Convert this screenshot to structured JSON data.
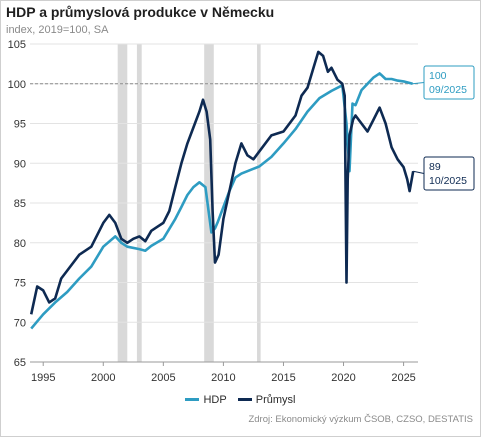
{
  "title": "HDP a průmyslová produkce v Německu",
  "subtitle": "index, 2019=100, SA",
  "source": "Zdroj: Ekonomický výzkum ČSOB, CZSO, DESTATIS",
  "colors": {
    "hdp": "#2e9cc2",
    "prumysl": "#0e2a52",
    "recession": "#d9d9d9",
    "grid": "#e3e3e3",
    "ref": "#8c8c8c"
  },
  "legend": [
    {
      "name": "HDP",
      "color": "#2e9cc2"
    },
    {
      "name": "Průmysl",
      "color": "#0e2a52"
    }
  ],
  "callouts": {
    "hdp": {
      "value": "100",
      "date": "09/2025"
    },
    "prumysl": {
      "value": "89",
      "date": "10/2025"
    }
  },
  "chart_data": {
    "type": "line",
    "x_range": [
      1993.9,
      2026.2
    ],
    "ylim": [
      65,
      105
    ],
    "xticks": [
      "1995",
      "2000",
      "2005",
      "2010",
      "2015",
      "2020",
      "2025"
    ],
    "xtick_values": [
      1995,
      2000,
      2005,
      2010,
      2015,
      2020,
      2025
    ],
    "yticks": [
      "65",
      "70",
      "75",
      "80",
      "85",
      "90",
      "95",
      "100",
      "105"
    ],
    "ytick_values": [
      65,
      70,
      75,
      80,
      85,
      90,
      95,
      100,
      105
    ],
    "reference_line": 100,
    "grid": true,
    "legend_position": "bottom",
    "recession_bands": [
      [
        2001.2,
        2002.0
      ],
      [
        2002.8,
        2003.2
      ],
      [
        2008.4,
        2009.2
      ],
      [
        2012.8,
        2013.1
      ]
    ],
    "series": [
      {
        "name": "HDP",
        "x": [
          1994.0,
          1995.0,
          1996.0,
          1997.0,
          1998.0,
          1999.0,
          2000.0,
          2001.0,
          2001.5,
          2002.0,
          2003.0,
          2003.5,
          2004.0,
          2005.0,
          2006.0,
          2006.5,
          2007.0,
          2007.5,
          2008.0,
          2008.5,
          2009.0,
          2009.3,
          2009.5,
          2010.0,
          2010.5,
          2011.0,
          2011.5,
          2012.0,
          2013.0,
          2014.0,
          2015.0,
          2016.0,
          2017.0,
          2018.0,
          2019.0,
          2019.9,
          2020.25,
          2020.5,
          2020.75,
          2021.0,
          2021.5,
          2022.0,
          2022.5,
          2023.0,
          2023.5,
          2024.0,
          2024.5,
          2025.0,
          2025.75
        ],
        "values": [
          69.2,
          71.0,
          72.5,
          73.8,
          75.5,
          77.0,
          79.5,
          80.8,
          80.0,
          79.5,
          79.2,
          79.0,
          79.6,
          80.5,
          83.0,
          84.5,
          86.0,
          87.0,
          87.6,
          87.0,
          81.3,
          81.8,
          82.5,
          84.5,
          86.5,
          88.2,
          88.7,
          89.0,
          89.6,
          90.8,
          92.5,
          94.3,
          96.5,
          98.2,
          99.1,
          99.8,
          95.0,
          89.0,
          97.5,
          97.3,
          99.2,
          100.0,
          100.8,
          101.3,
          100.6,
          100.6,
          100.4,
          100.3,
          100.0
        ]
      },
      {
        "name": "Průmysl",
        "x": [
          1994.0,
          1994.5,
          1995.0,
          1995.5,
          1996.0,
          1996.5,
          1997.0,
          1998.0,
          1999.0,
          2000.0,
          2000.5,
          2001.0,
          2001.5,
          2002.0,
          2002.5,
          2003.0,
          2003.5,
          2004.0,
          2004.5,
          2005.0,
          2005.5,
          2006.0,
          2006.5,
          2007.0,
          2007.5,
          2008.0,
          2008.3,
          2008.6,
          2008.9,
          2009.1,
          2009.3,
          2009.6,
          2010.0,
          2010.5,
          2011.0,
          2011.5,
          2012.0,
          2012.5,
          2013.0,
          2014.0,
          2015.0,
          2016.0,
          2016.5,
          2017.0,
          2017.5,
          2017.9,
          2018.3,
          2018.7,
          2019.0,
          2019.5,
          2019.9,
          2020.1,
          2020.25,
          2020.35,
          2020.5,
          2020.8,
          2021.0,
          2021.5,
          2022.0,
          2022.5,
          2023.0,
          2023.5,
          2024.0,
          2024.5,
          2025.0,
          2025.3,
          2025.5,
          2025.8
        ],
        "values": [
          71.0,
          74.5,
          74.0,
          72.5,
          73.0,
          75.5,
          76.5,
          78.5,
          79.5,
          82.5,
          83.5,
          82.5,
          80.5,
          80.0,
          80.5,
          80.8,
          80.2,
          81.5,
          82.0,
          82.5,
          84.0,
          87.0,
          90.0,
          92.5,
          94.5,
          96.5,
          98.0,
          96.5,
          93.0,
          84.0,
          77.5,
          78.5,
          83.0,
          86.5,
          90.0,
          92.5,
          91.0,
          90.5,
          91.5,
          93.5,
          94.0,
          96.0,
          98.5,
          99.5,
          102.0,
          104.0,
          103.5,
          101.5,
          102.0,
          100.5,
          100.0,
          98.5,
          75.0,
          88.0,
          93.5,
          95.5,
          96.0,
          95.0,
          94.0,
          95.5,
          97.0,
          95.0,
          92.0,
          90.5,
          89.5,
          88.0,
          86.5,
          89.0
        ]
      }
    ]
  }
}
